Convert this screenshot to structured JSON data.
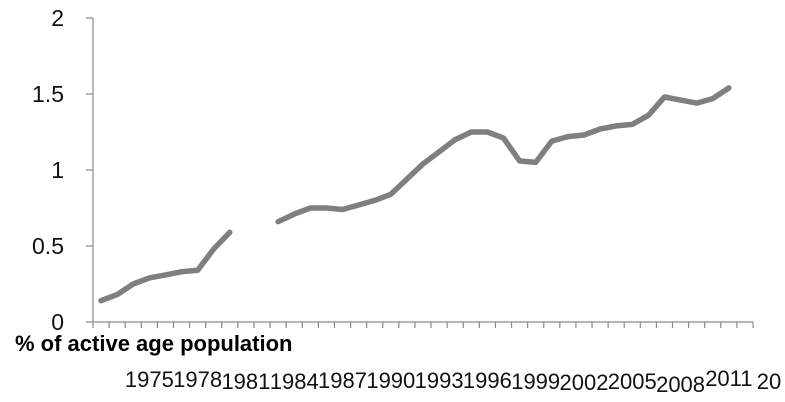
{
  "chart_data": {
    "type": "line",
    "title": "",
    "ylabel": "% of active age population",
    "xlabel": "",
    "ylim": [
      0,
      2
    ],
    "grid": false,
    "legend": "none",
    "y_ticks": [
      "0",
      "0.5",
      "1",
      "1.5",
      "2"
    ],
    "x_tick_labels": [
      "1975",
      "1978",
      "1981",
      "1984",
      "1987",
      "1990",
      "1993",
      "1996",
      "1999",
      "2002",
      "2005",
      "2008",
      "2011",
      "20"
    ],
    "x": [
      1972,
      1973,
      1974,
      1975,
      1976,
      1977,
      1978,
      1979,
      1980,
      1981,
      1982,
      1983,
      1984,
      1985,
      1986,
      1987,
      1988,
      1989,
      1990,
      1991,
      1992,
      1993,
      1994,
      1995,
      1996,
      1997,
      1998,
      1999,
      2000,
      2001,
      2002,
      2003,
      2004,
      2005,
      2006,
      2007,
      2008,
      2009,
      2010,
      2011,
      2012
    ],
    "series": [
      {
        "values": [
          0.14,
          0.18,
          0.25,
          0.29,
          0.31,
          0.33,
          0.34,
          0.48,
          0.59,
          null,
          null,
          0.66,
          0.71,
          0.75,
          0.75,
          0.74,
          0.77,
          0.8,
          0.84,
          0.94,
          1.04,
          1.12,
          1.2,
          1.25,
          1.25,
          1.21,
          1.06,
          1.05,
          1.19,
          1.22,
          1.23,
          1.27,
          1.29,
          1.3,
          1.36,
          1.48,
          1.46,
          1.44,
          1.47,
          1.54,
          null
        ],
        "color": "#7f7f7f"
      }
    ]
  }
}
